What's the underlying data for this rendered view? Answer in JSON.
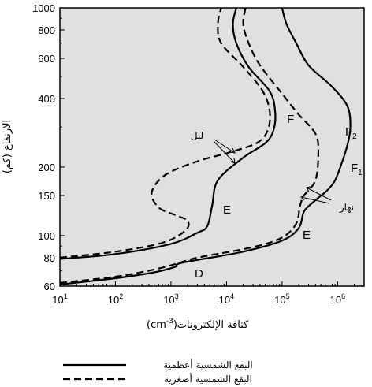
{
  "chart_data": {
    "type": "line",
    "xlabel": "كثافة الإلكترونات",
    "xunit": "(cm",
    "xunit_exp": "-3",
    "xunit_close": ")",
    "ylabel": "الارتفاع (كم)",
    "x_scale": "log",
    "y_scale": "log",
    "xlim": [
      10,
      3000000
    ],
    "ylim": [
      60,
      1000
    ],
    "x_ticks": [
      {
        "value": 10,
        "base": "10",
        "exp": "1"
      },
      {
        "value": 100,
        "base": "10",
        "exp": "2"
      },
      {
        "value": 1000,
        "base": "10",
        "exp": "3"
      },
      {
        "value": 10000,
        "base": "10",
        "exp": "4"
      },
      {
        "value": 100000,
        "base": "10",
        "exp": "5"
      },
      {
        "value": 1000000,
        "base": "10",
        "exp": "6"
      }
    ],
    "y_ticks": [
      {
        "value": 60,
        "label": "60"
      },
      {
        "value": 80,
        "label": "80"
      },
      {
        "value": 100,
        "label": "100"
      },
      {
        "value": 150,
        "label": "150"
      },
      {
        "value": 200,
        "label": "200"
      },
      {
        "value": 400,
        "label": "400"
      },
      {
        "value": 600,
        "label": "600"
      },
      {
        "value": 800,
        "label": "800"
      },
      {
        "value": 1000,
        "label": "1000"
      }
    ],
    "grid": false,
    "plot_background": "#e0e0e0",
    "legend": {
      "placement": "bottom",
      "entries": [
        {
          "label": "البقع الشمسية أعظمية",
          "style": "solid"
        },
        {
          "label": "البقع الشمسية أصغرية",
          "style": "dashed"
        }
      ]
    },
    "series": [
      {
        "style": "solid",
        "period": "night",
        "sunspot": "max",
        "points": [
          [
            10,
            79
          ],
          [
            100,
            83
          ],
          [
            1000,
            92
          ],
          [
            3000,
            103
          ],
          [
            4500,
            110
          ],
          [
            5500,
            135
          ],
          [
            7000,
            175
          ],
          [
            20000,
            220
          ],
          [
            50000,
            255
          ],
          [
            70000,
            290
          ],
          [
            75000,
            350
          ],
          [
            60000,
            430
          ],
          [
            25000,
            550
          ],
          [
            15000,
            700
          ],
          [
            13000,
            850
          ],
          [
            15000,
            1000
          ]
        ]
      },
      {
        "style": "dashed",
        "period": "night",
        "sunspot": "min",
        "points": [
          [
            10,
            80
          ],
          [
            100,
            85
          ],
          [
            700,
            93
          ],
          [
            1800,
            105
          ],
          [
            2000,
            116
          ],
          [
            1200,
            123
          ],
          [
            600,
            133
          ],
          [
            450,
            155
          ],
          [
            800,
            185
          ],
          [
            3000,
            212
          ],
          [
            10000,
            230
          ],
          [
            35000,
            255
          ],
          [
            55000,
            290
          ],
          [
            60000,
            350
          ],
          [
            45000,
            430
          ],
          [
            20000,
            550
          ],
          [
            8000,
            700
          ],
          [
            7000,
            850
          ],
          [
            8000,
            1000
          ]
        ]
      },
      {
        "style": "solid",
        "period": "day",
        "sunspot": "max",
        "points": [
          [
            10,
            61
          ],
          [
            100,
            65
          ],
          [
            500,
            69
          ],
          [
            1200,
            73
          ],
          [
            1600,
            76
          ],
          [
            20000,
            85
          ],
          [
            100000,
            95
          ],
          [
            200000,
            108
          ],
          [
            250000,
            128
          ],
          [
            400000,
            143
          ],
          [
            650000,
            158
          ],
          [
            900000,
            175
          ],
          [
            1200000,
            210
          ],
          [
            1500000,
            250
          ],
          [
            1700000,
            300
          ],
          [
            1500000,
            370
          ],
          [
            800000,
            450
          ],
          [
            300000,
            560
          ],
          [
            180000,
            700
          ],
          [
            120000,
            850
          ],
          [
            100000,
            1000
          ]
        ]
      },
      {
        "style": "dashed",
        "period": "day",
        "sunspot": "min",
        "points": [
          [
            10,
            62
          ],
          [
            100,
            66
          ],
          [
            500,
            71
          ],
          [
            1200,
            75
          ],
          [
            3000,
            80
          ],
          [
            30000,
            89
          ],
          [
            100000,
            98
          ],
          [
            180000,
            113
          ],
          [
            210000,
            135
          ],
          [
            250000,
            150
          ],
          [
            400000,
            175
          ],
          [
            450000,
            230
          ],
          [
            400000,
            280
          ],
          [
            200000,
            340
          ],
          [
            100000,
            420
          ],
          [
            40000,
            560
          ],
          [
            25000,
            700
          ],
          [
            20000,
            850
          ],
          [
            22000,
            1000
          ]
        ]
      }
    ],
    "annotations": {
      "night": "ليل",
      "day": "نهار",
      "f_night": "F",
      "f2": "F",
      "f2_sub": "2",
      "f1": "F",
      "f1_sub": "1",
      "e_night": "E",
      "e_day": "E",
      "d": "D"
    }
  }
}
